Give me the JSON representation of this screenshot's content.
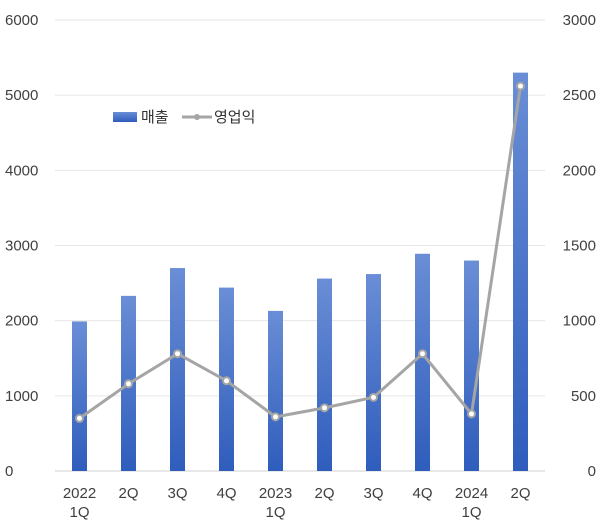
{
  "chart_data": {
    "type": "bar",
    "categories": [
      [
        "2022",
        "1Q"
      ],
      [
        "2Q"
      ],
      [
        "3Q"
      ],
      [
        "4Q"
      ],
      [
        "2023",
        "1Q"
      ],
      [
        "2Q"
      ],
      [
        "3Q"
      ],
      [
        "4Q"
      ],
      [
        "2024",
        "1Q"
      ],
      [
        "2Q"
      ]
    ],
    "series": [
      {
        "name": "매출",
        "kind": "bar",
        "axis": "left",
        "color": "#4472C4",
        "values": [
          1990,
          2330,
          2700,
          2440,
          2130,
          2560,
          2620,
          2890,
          2800,
          5300
        ]
      },
      {
        "name": "영업익",
        "kind": "line",
        "axis": "right",
        "color": "#A5A5A5",
        "values": [
          350,
          580,
          780,
          600,
          360,
          420,
          490,
          780,
          380,
          2560
        ]
      }
    ],
    "y_left": {
      "min": 0,
      "max": 6000,
      "ticks": [
        0,
        1000,
        2000,
        3000,
        4000,
        5000,
        6000
      ]
    },
    "y_right": {
      "min": 0,
      "max": 3000,
      "ticks": [
        0,
        500,
        1000,
        1500,
        2000,
        2500,
        3000
      ]
    },
    "grid": true,
    "legend_position": "top-left"
  }
}
